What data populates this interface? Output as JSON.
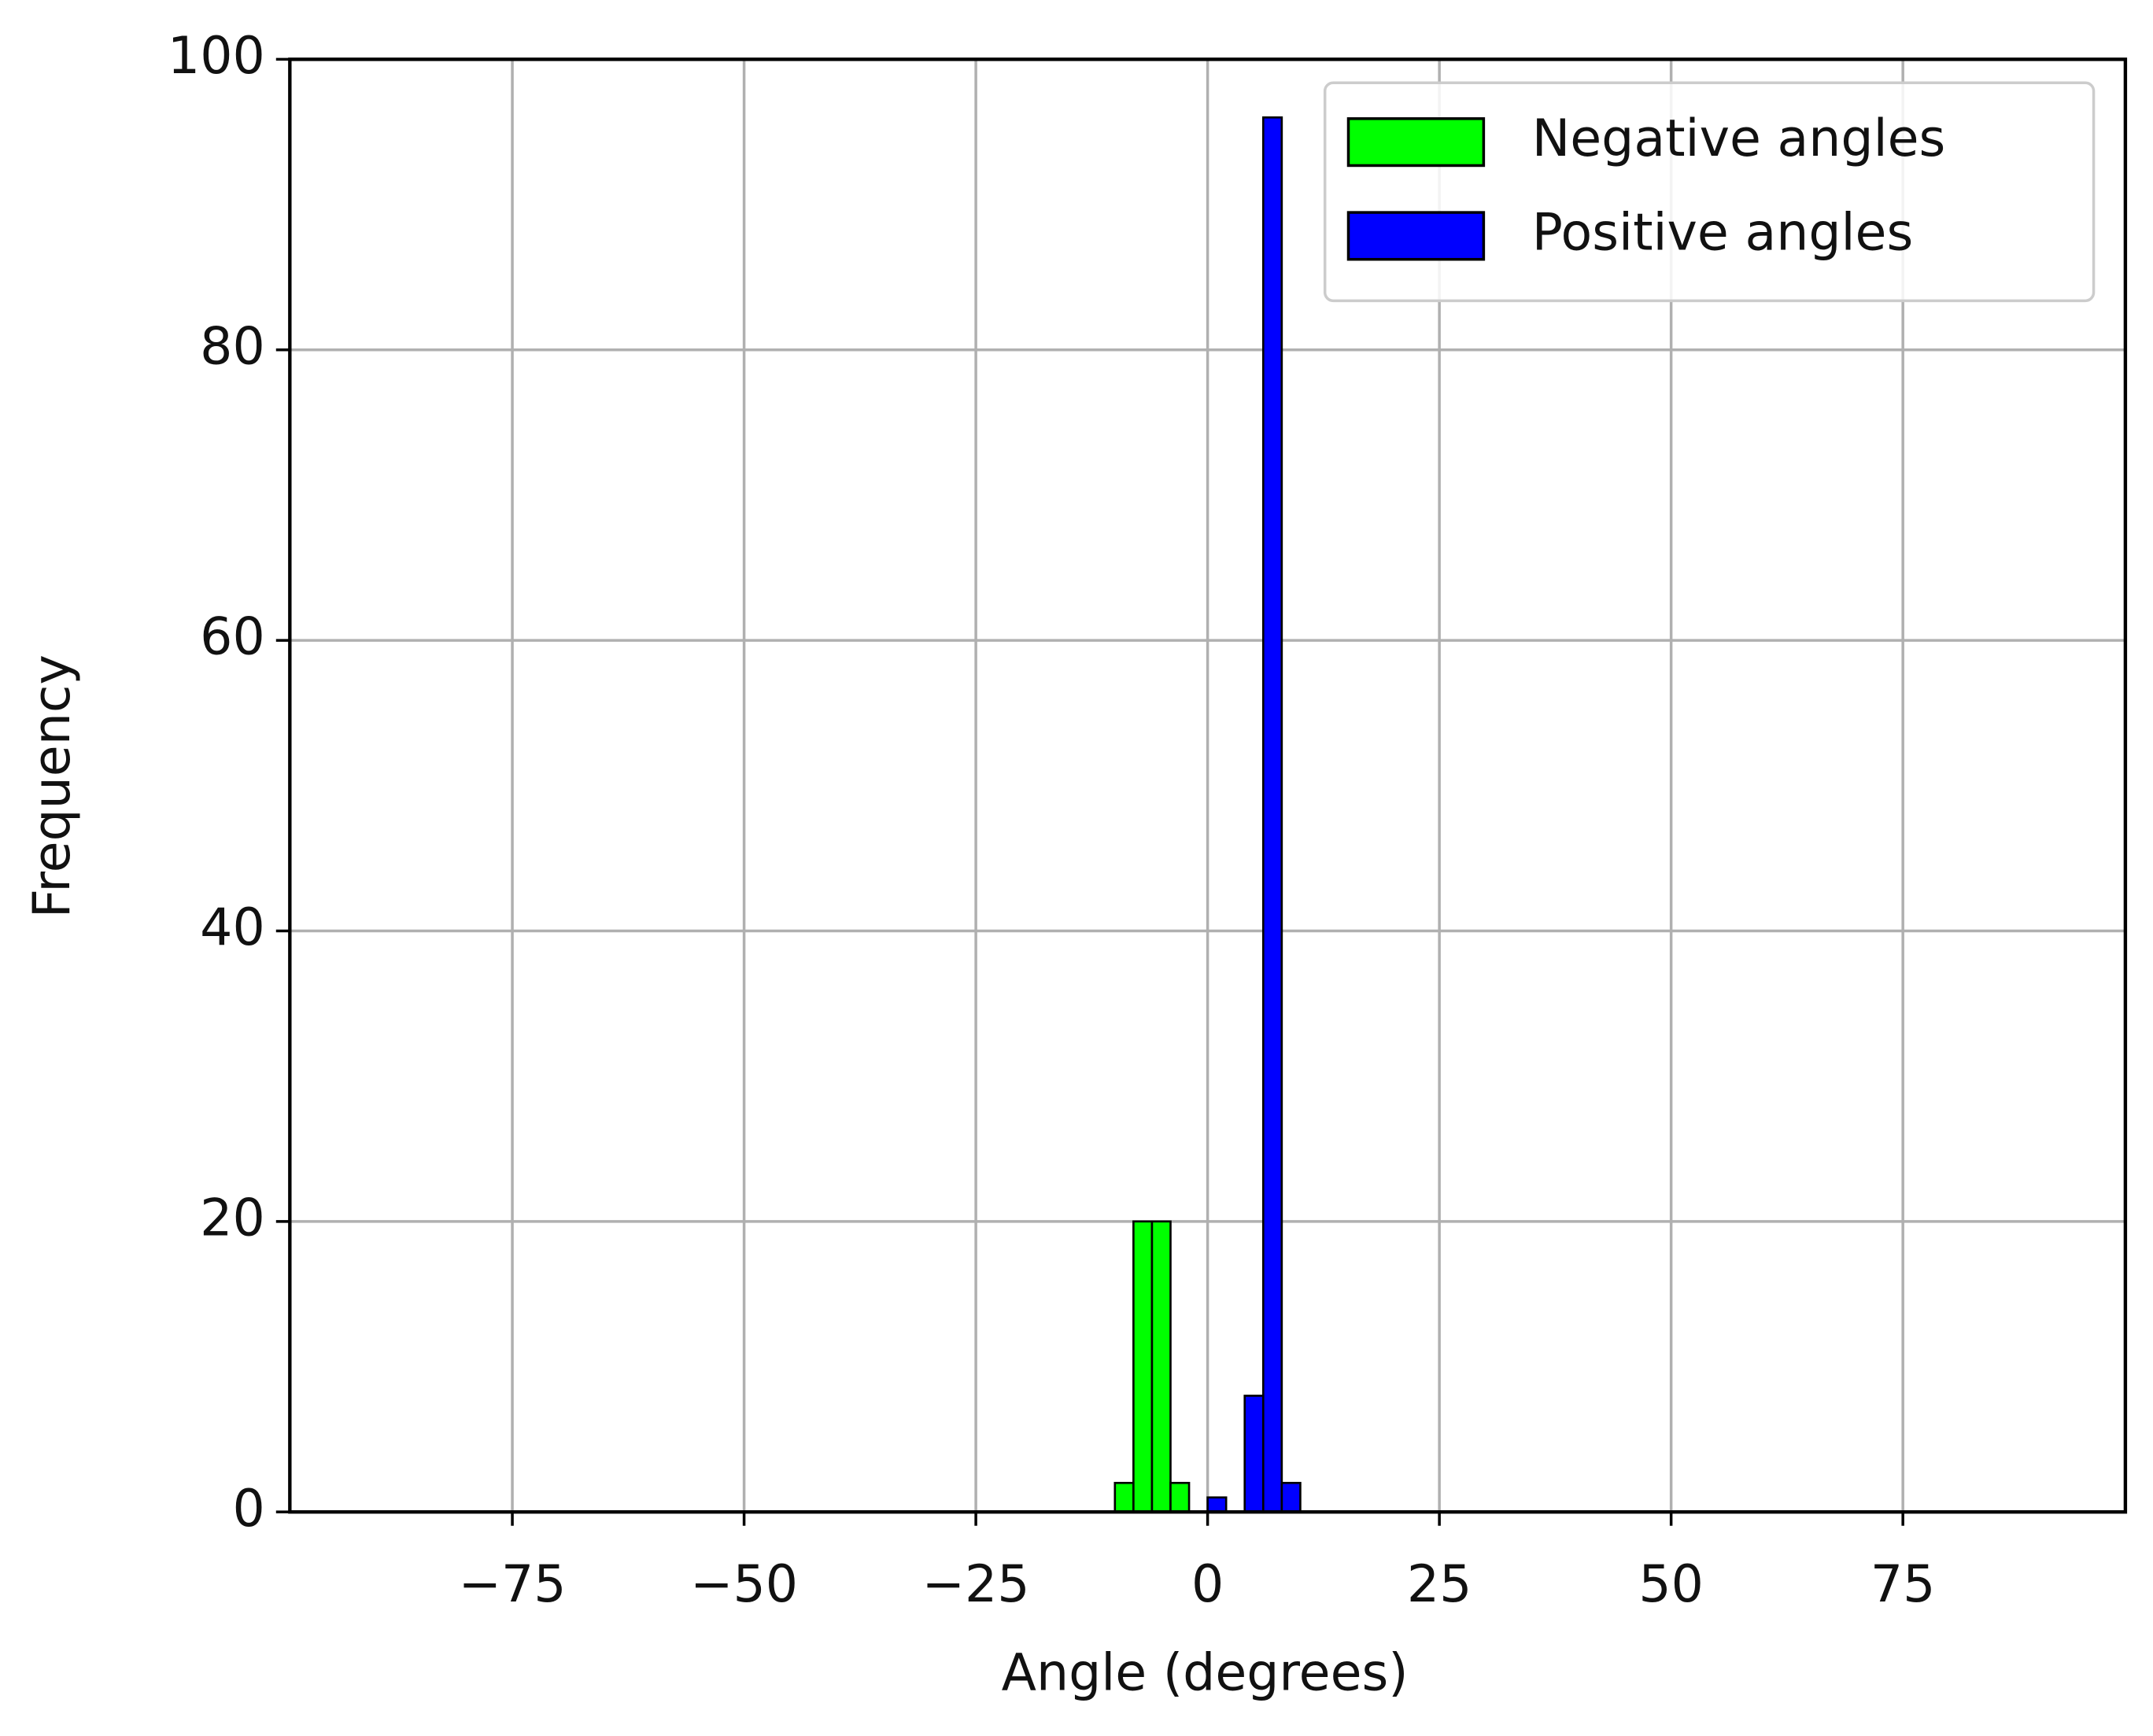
{
  "chart_data": {
    "type": "histogram",
    "xlabel": "Angle (degrees)",
    "ylabel": "Frequency",
    "bins": [
      -90,
      -88,
      -86,
      -84,
      -82,
      -80,
      -78,
      -76,
      -74,
      -72,
      -70,
      -68,
      -66,
      -64,
      -62,
      -60,
      -58,
      -56,
      -54,
      -52,
      -50,
      -48,
      -46,
      -44,
      -42,
      -40,
      -38,
      -36,
      -34,
      -32,
      -30,
      -28,
      -26,
      -24,
      -22,
      -20,
      -18,
      -16,
      -14,
      -12,
      -10,
      -8,
      -6,
      -4,
      -2,
      0,
      2,
      4,
      6,
      8,
      10,
      12,
      14,
      16,
      18,
      20,
      22,
      24,
      26,
      28,
      30,
      32,
      34,
      36,
      38,
      40,
      42,
      44,
      46,
      48,
      50,
      52,
      54,
      56,
      58,
      60,
      62,
      64,
      66,
      68,
      70,
      72,
      74,
      76,
      78,
      80,
      82,
      84,
      86,
      88,
      90
    ],
    "series": [
      {
        "name": "Negative angles",
        "color": "#00ff00",
        "values": [
          0,
          0,
          0,
          0,
          0,
          0,
          0,
          0,
          0,
          0,
          0,
          0,
          0,
          0,
          0,
          0,
          0,
          0,
          0,
          0,
          0,
          0,
          0,
          0,
          0,
          0,
          0,
          0,
          0,
          0,
          0,
          0,
          0,
          0,
          0,
          0,
          0,
          0,
          0,
          0,
          2,
          20,
          20,
          2,
          0,
          0,
          0,
          0,
          0,
          0,
          0,
          0,
          0,
          0,
          0,
          0,
          0,
          0,
          0,
          0,
          0,
          0,
          0,
          0,
          0,
          0,
          0,
          0,
          0,
          0,
          0,
          0,
          0,
          0,
          0,
          0,
          0,
          0,
          0,
          0,
          0,
          0,
          0,
          0,
          0,
          0,
          0,
          0,
          0,
          0
        ]
      },
      {
        "name": "Positive angles",
        "color": "#0000ff",
        "values": [
          0,
          0,
          0,
          0,
          0,
          0,
          0,
          0,
          0,
          0,
          0,
          0,
          0,
          0,
          0,
          0,
          0,
          0,
          0,
          0,
          0,
          0,
          0,
          0,
          0,
          0,
          0,
          0,
          0,
          0,
          0,
          0,
          0,
          0,
          0,
          0,
          0,
          0,
          0,
          0,
          0,
          0,
          0,
          0,
          0,
          1,
          0,
          8,
          96,
          2,
          0,
          0,
          0,
          0,
          0,
          0,
          0,
          0,
          0,
          0,
          0,
          0,
          0,
          0,
          0,
          0,
          0,
          0,
          0,
          0,
          0,
          0,
          0,
          0,
          0,
          0,
          0,
          0,
          0,
          0,
          0,
          0,
          0,
          0,
          0,
          0,
          0,
          0,
          0,
          0
        ]
      }
    ],
    "xlim": [
      -99,
      99
    ],
    "ylim": [
      0,
      100
    ],
    "xticks": [
      {
        "value": -75,
        "label": "−75"
      },
      {
        "value": -50,
        "label": "−50"
      },
      {
        "value": -25,
        "label": "−25"
      },
      0,
      25,
      50,
      75
    ],
    "yticks": [
      0,
      20,
      40,
      60,
      80,
      100
    ],
    "grid": true,
    "legend": "upper-right"
  }
}
